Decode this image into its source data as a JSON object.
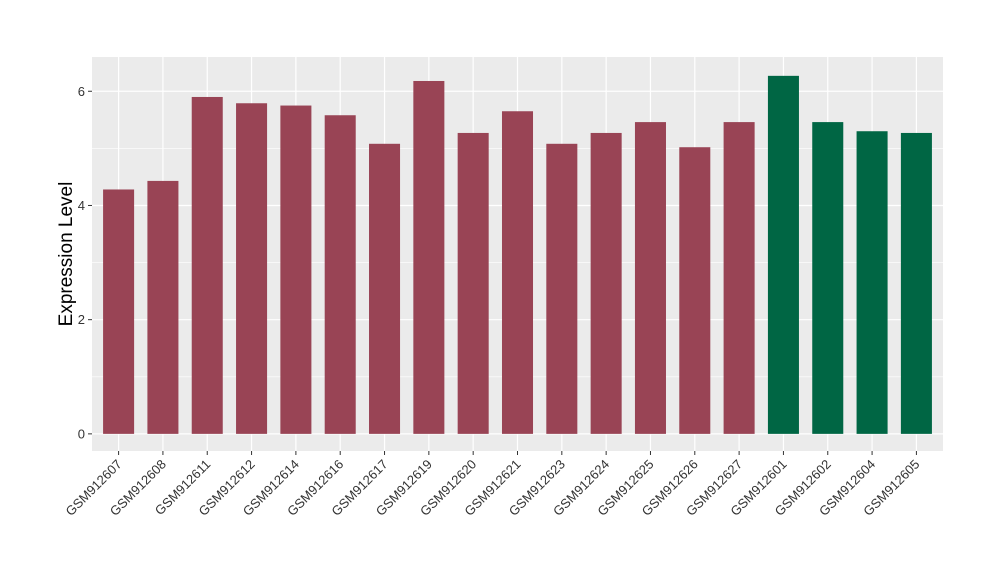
{
  "chart_data": {
    "type": "bar",
    "title": "",
    "xlabel": "",
    "ylabel": "Expression Level",
    "ylim": [
      -0.3,
      6.6
    ],
    "y_ticks": [
      0,
      2,
      4,
      6
    ],
    "grid": true,
    "categories": [
      "GSM912607",
      "GSM912608",
      "GSM912611",
      "GSM912612",
      "GSM912614",
      "GSM912616",
      "GSM912617",
      "GSM912619",
      "GSM912620",
      "GSM912621",
      "GSM912623",
      "GSM912624",
      "GSM912625",
      "GSM912626",
      "GSM912627",
      "GSM912601",
      "GSM912602",
      "GSM912604",
      "GSM912605"
    ],
    "values": [
      4.28,
      4.43,
      5.9,
      5.79,
      5.75,
      5.58,
      5.08,
      6.18,
      5.27,
      5.65,
      5.08,
      5.27,
      5.46,
      5.02,
      5.46,
      6.27,
      5.46,
      5.3,
      5.27
    ],
    "bar_colors": [
      "#994455",
      "#994455",
      "#994455",
      "#994455",
      "#994455",
      "#994455",
      "#994455",
      "#994455",
      "#994455",
      "#994455",
      "#994455",
      "#994455",
      "#994455",
      "#994455",
      "#994455",
      "#006644",
      "#006644",
      "#006644",
      "#006644"
    ],
    "panel_background": "#ebebeb",
    "grid_color": "#ffffff"
  }
}
